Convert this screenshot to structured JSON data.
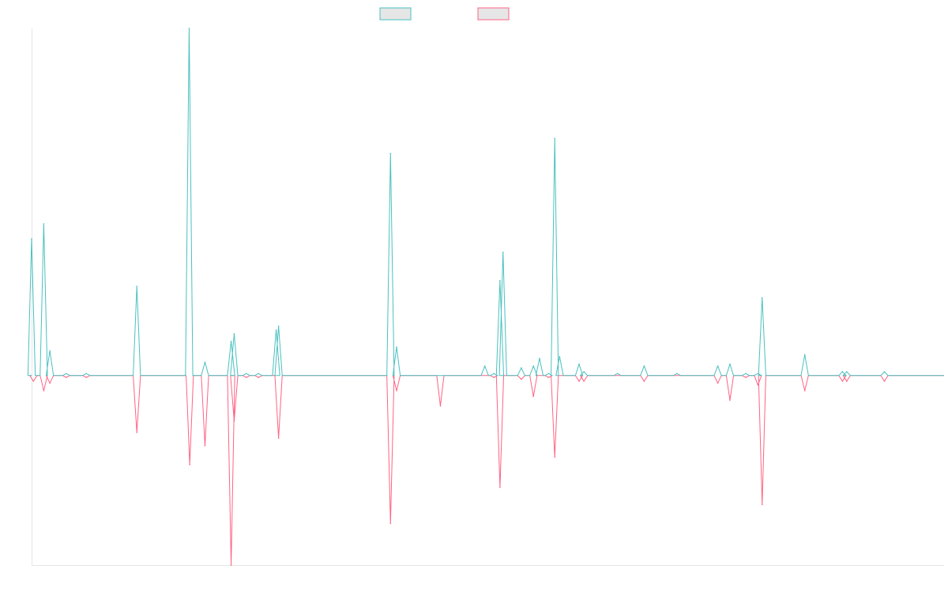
{
  "colors": {
    "series_up": "#4bc0c0",
    "series_down": "#ff6384",
    "legend_fill": "#e6e6e6",
    "axis": "#e6e6e6"
  },
  "chart_data": {
    "type": "line",
    "title": "",
    "xlabel": "",
    "ylabel": "",
    "grid": false,
    "legend_position": "top",
    "x_range": [
      0,
      150
    ],
    "ylim": [
      -1.0,
      1.83
    ],
    "series": [
      {
        "color": "#4bc0c0",
        "values": [
          0.72,
          0,
          0,
          0,
          0,
          0,
          0.8,
          0,
          0.13,
          0,
          0,
          0,
          0,
          0,
          0,
          0,
          0,
          0,
          0,
          0,
          0,
          0,
          0,
          0,
          0,
          0,
          0,
          0,
          0,
          0,
          0,
          0,
          0,
          0,
          0,
          0,
          0,
          0,
          0,
          0,
          0,
          0,
          0,
          0,
          0,
          0,
          0,
          0,
          0,
          0,
          0,
          0,
          0,
          0,
          0,
          0,
          0,
          0,
          0,
          0,
          0,
          0,
          0,
          0,
          0,
          0,
          0,
          0,
          0,
          0,
          0,
          0,
          0,
          0,
          0,
          0,
          0,
          0,
          0,
          0,
          0,
          0,
          0,
          0,
          0,
          0,
          0,
          0,
          0,
          0,
          0,
          0,
          0,
          0,
          0,
          0,
          0,
          0,
          0,
          0,
          0,
          0,
          0,
          0,
          0,
          0,
          0,
          0,
          0,
          0,
          0,
          0,
          0,
          0,
          0,
          0,
          0,
          0,
          0,
          0,
          0,
          0,
          0,
          0,
          0,
          0,
          0,
          0,
          0,
          0,
          0,
          0,
          0,
          0,
          0,
          0,
          0,
          0,
          0,
          0,
          0,
          0,
          0,
          0,
          0,
          0,
          0,
          0,
          0,
          0
        ],
        "spikes": [
          {
            "x": 0.0,
            "y": 0.72
          },
          {
            "x": 2.0,
            "y": 0.8
          },
          {
            "x": 3.0,
            "y": 0.13
          },
          {
            "x": 5.7,
            "y": 0.01
          },
          {
            "x": 9.0,
            "y": 0.01
          },
          {
            "x": 17.3,
            "y": 0.47
          },
          {
            "x": 25.9,
            "y": 1.83
          },
          {
            "x": 28.5,
            "y": 0.07
          },
          {
            "x": 32.8,
            "y": 0.18
          },
          {
            "x": 33.3,
            "y": 0.22
          },
          {
            "x": 35.3,
            "y": 0.01
          },
          {
            "x": 37.3,
            "y": 0.01
          },
          {
            "x": 40.2,
            "y": 0.24
          },
          {
            "x": 40.6,
            "y": 0.26
          },
          {
            "x": 59.0,
            "y": 1.17
          },
          {
            "x": 60.0,
            "y": 0.15
          },
          {
            "x": 74.5,
            "y": 0.05
          },
          {
            "x": 76.0,
            "y": 0.01
          },
          {
            "x": 77.0,
            "y": 0.5
          },
          {
            "x": 77.5,
            "y": 0.65
          },
          {
            "x": 80.5,
            "y": 0.04
          },
          {
            "x": 82.5,
            "y": 0.05
          },
          {
            "x": 83.5,
            "y": 0.09
          },
          {
            "x": 85.0,
            "y": 0.01
          },
          {
            "x": 86.0,
            "y": 1.25
          },
          {
            "x": 86.8,
            "y": 0.1
          },
          {
            "x": 90.0,
            "y": 0.06
          },
          {
            "x": 90.8,
            "y": 0.02
          },
          {
            "x": 96.3,
            "y": 0.01
          },
          {
            "x": 100.7,
            "y": 0.05
          },
          {
            "x": 106.1,
            "y": 0.01
          },
          {
            "x": 112.8,
            "y": 0.05
          },
          {
            "x": 114.8,
            "y": 0.06
          },
          {
            "x": 117.4,
            "y": 0.01
          },
          {
            "x": 119.4,
            "y": 0.01
          },
          {
            "x": 120.1,
            "y": 0.41
          },
          {
            "x": 127.1,
            "y": 0.11
          },
          {
            "x": 133.3,
            "y": 0.02
          },
          {
            "x": 134.0,
            "y": 0.02
          },
          {
            "x": 140.2,
            "y": 0.02
          }
        ]
      },
      {
        "color": "#ff6384",
        "spikes": [
          {
            "x": 0.3,
            "y": -0.03
          },
          {
            "x": 2.0,
            "y": -0.08
          },
          {
            "x": 3.0,
            "y": -0.04
          },
          {
            "x": 5.7,
            "y": -0.01
          },
          {
            "x": 9.0,
            "y": -0.01
          },
          {
            "x": 17.3,
            "y": -0.3
          },
          {
            "x": 26.0,
            "y": -0.47
          },
          {
            "x": 28.5,
            "y": -0.37
          },
          {
            "x": 32.8,
            "y": -1.0
          },
          {
            "x": 33.3,
            "y": -0.24
          },
          {
            "x": 35.3,
            "y": -0.01
          },
          {
            "x": 37.3,
            "y": -0.01
          },
          {
            "x": 40.6,
            "y": -0.33
          },
          {
            "x": 59.0,
            "y": -0.78
          },
          {
            "x": 60.0,
            "y": -0.08
          },
          {
            "x": 67.2,
            "y": -0.16
          },
          {
            "x": 76.0,
            "y": -0.01
          },
          {
            "x": 77.0,
            "y": -0.59
          },
          {
            "x": 80.5,
            "y": -0.02
          },
          {
            "x": 82.5,
            "y": -0.11
          },
          {
            "x": 85.0,
            "y": -0.01
          },
          {
            "x": 86.0,
            "y": -0.43
          },
          {
            "x": 90.0,
            "y": -0.03
          },
          {
            "x": 90.8,
            "y": -0.03
          },
          {
            "x": 100.7,
            "y": -0.03
          },
          {
            "x": 112.8,
            "y": -0.04
          },
          {
            "x": 114.8,
            "y": -0.13
          },
          {
            "x": 117.4,
            "y": -0.01
          },
          {
            "x": 119.4,
            "y": -0.05
          },
          {
            "x": 120.1,
            "y": -0.68
          },
          {
            "x": 127.1,
            "y": -0.08
          },
          {
            "x": 133.3,
            "y": -0.03
          },
          {
            "x": 134.0,
            "y": -0.03
          },
          {
            "x": 140.2,
            "y": -0.03
          }
        ]
      }
    ]
  }
}
